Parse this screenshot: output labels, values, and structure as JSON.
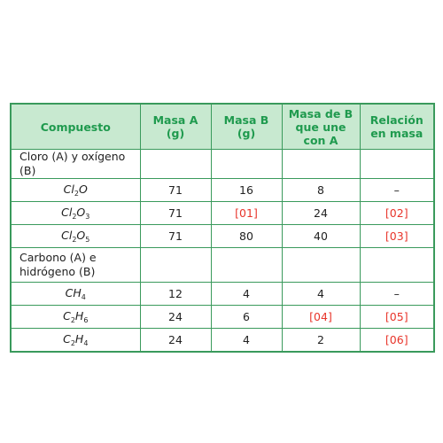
{
  "headers": [
    "Compuesto",
    "Masa A (g)",
    "Masa B (g)",
    "Masa de B que une con A",
    "Relación en masa"
  ],
  "groups": [
    {
      "label": "Cloro (A) y oxígeno (B)",
      "rows": [
        {
          "formula_base": [
            "Cl",
            "O"
          ],
          "formula_subs": [
            "2",
            ""
          ],
          "masa_a": "71",
          "masa_b": "16",
          "masa_b_red": false,
          "masa_b_une": "8",
          "masa_b_une_red": false,
          "relacion": "–",
          "relacion_red": false
        },
        {
          "formula_base": [
            "Cl",
            "O"
          ],
          "formula_subs": [
            "2",
            "3"
          ],
          "masa_a": "71",
          "masa_b": "[01]",
          "masa_b_red": true,
          "masa_b_une": "24",
          "masa_b_une_red": false,
          "relacion": "[02]",
          "relacion_red": true
        },
        {
          "formula_base": [
            "Cl",
            "O"
          ],
          "formula_subs": [
            "2",
            "5"
          ],
          "masa_a": "71",
          "masa_b": "80",
          "masa_b_red": false,
          "masa_b_une": "40",
          "masa_b_une_red": false,
          "relacion": "[03]",
          "relacion_red": true
        }
      ]
    },
    {
      "label": "Carbono (A) e hidrógeno (B)",
      "rows": [
        {
          "formula_base": [
            "C",
            "H"
          ],
          "formula_subs": [
            "",
            "4"
          ],
          "masa_a": "12",
          "masa_b": "4",
          "masa_b_red": false,
          "masa_b_une": "4",
          "masa_b_une_red": false,
          "relacion": "–",
          "relacion_red": false
        },
        {
          "formula_base": [
            "C",
            "H"
          ],
          "formula_subs": [
            "2",
            "6"
          ],
          "masa_a": "24",
          "masa_b": "6",
          "masa_b_red": false,
          "masa_b_une": "[04]",
          "masa_b_une_red": true,
          "relacion": "[05]",
          "relacion_red": true
        },
        {
          "formula_base": [
            "C",
            "H"
          ],
          "formula_subs": [
            "2",
            "4"
          ],
          "masa_a": "24",
          "masa_b": "4",
          "masa_b_red": false,
          "masa_b_une": "2",
          "masa_b_une_red": false,
          "relacion": "[06]",
          "relacion_red": true
        }
      ]
    }
  ],
  "colors": {
    "border": "#3a9a5c",
    "header_bg": "#c8e9d0",
    "header_text": "#1f9a4e",
    "placeholder": "#e8352b"
  }
}
